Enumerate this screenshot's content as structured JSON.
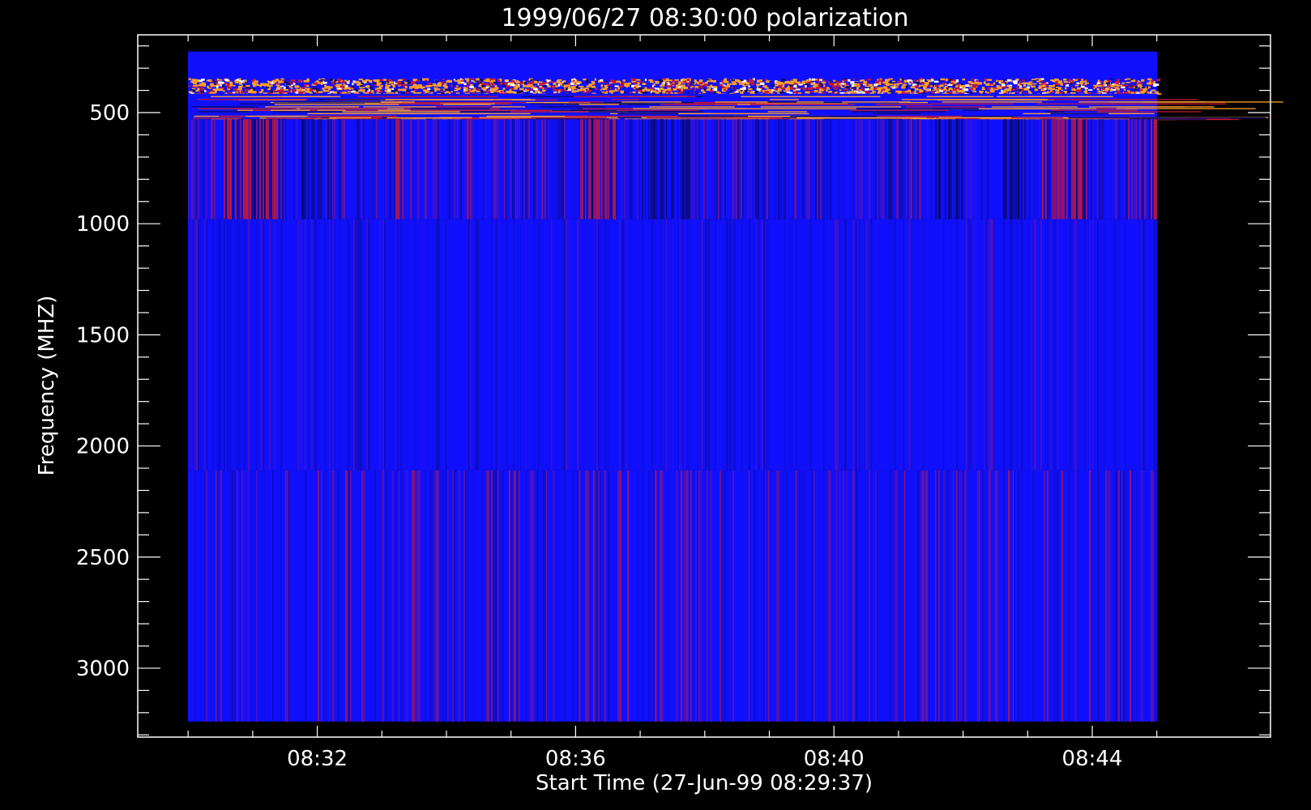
{
  "chart_data": {
    "type": "heatmap",
    "title": "1999/06/27 08:30:00 polarization",
    "xlabel": "Start Time (27-Jun-99 08:29:37)",
    "ylabel": "Frequency (MHZ)",
    "x_tick_labels": [
      "08:32",
      "08:36",
      "08:40",
      "08:44"
    ],
    "x_ticks_minutes": [
      32,
      36,
      40,
      44
    ],
    "x_data_range_minutes": [
      30,
      45
    ],
    "x_axis_range_minutes": [
      29.22,
      46.76
    ],
    "y_tick_labels": [
      "500",
      "1000",
      "1500",
      "2000",
      "2500",
      "3000"
    ],
    "y_ticks": [
      500,
      1000,
      1500,
      2000,
      2500,
      3000
    ],
    "y_axis_range": [
      150,
      3310
    ],
    "y_data_range": [
      225,
      3240
    ],
    "y_inverted": true,
    "bands_mhz": [
      {
        "from": 225,
        "to": 345,
        "style": "solid-blue"
      },
      {
        "from": 345,
        "to": 415,
        "style": "noisy-orange"
      },
      {
        "from": 415,
        "to": 530,
        "style": "striated"
      },
      {
        "from": 530,
        "to": 980,
        "style": "red-purple-columns"
      },
      {
        "from": 980,
        "to": 2110,
        "style": "blue-columns"
      },
      {
        "from": 2110,
        "to": 3240,
        "style": "blue-red-columns"
      }
    ],
    "colors": {
      "background": "#000000",
      "axes": "#ffffff",
      "blue": "#1010ff",
      "red": "#c01838",
      "orange": "#ffa028",
      "dark": "#0a0a60"
    }
  }
}
